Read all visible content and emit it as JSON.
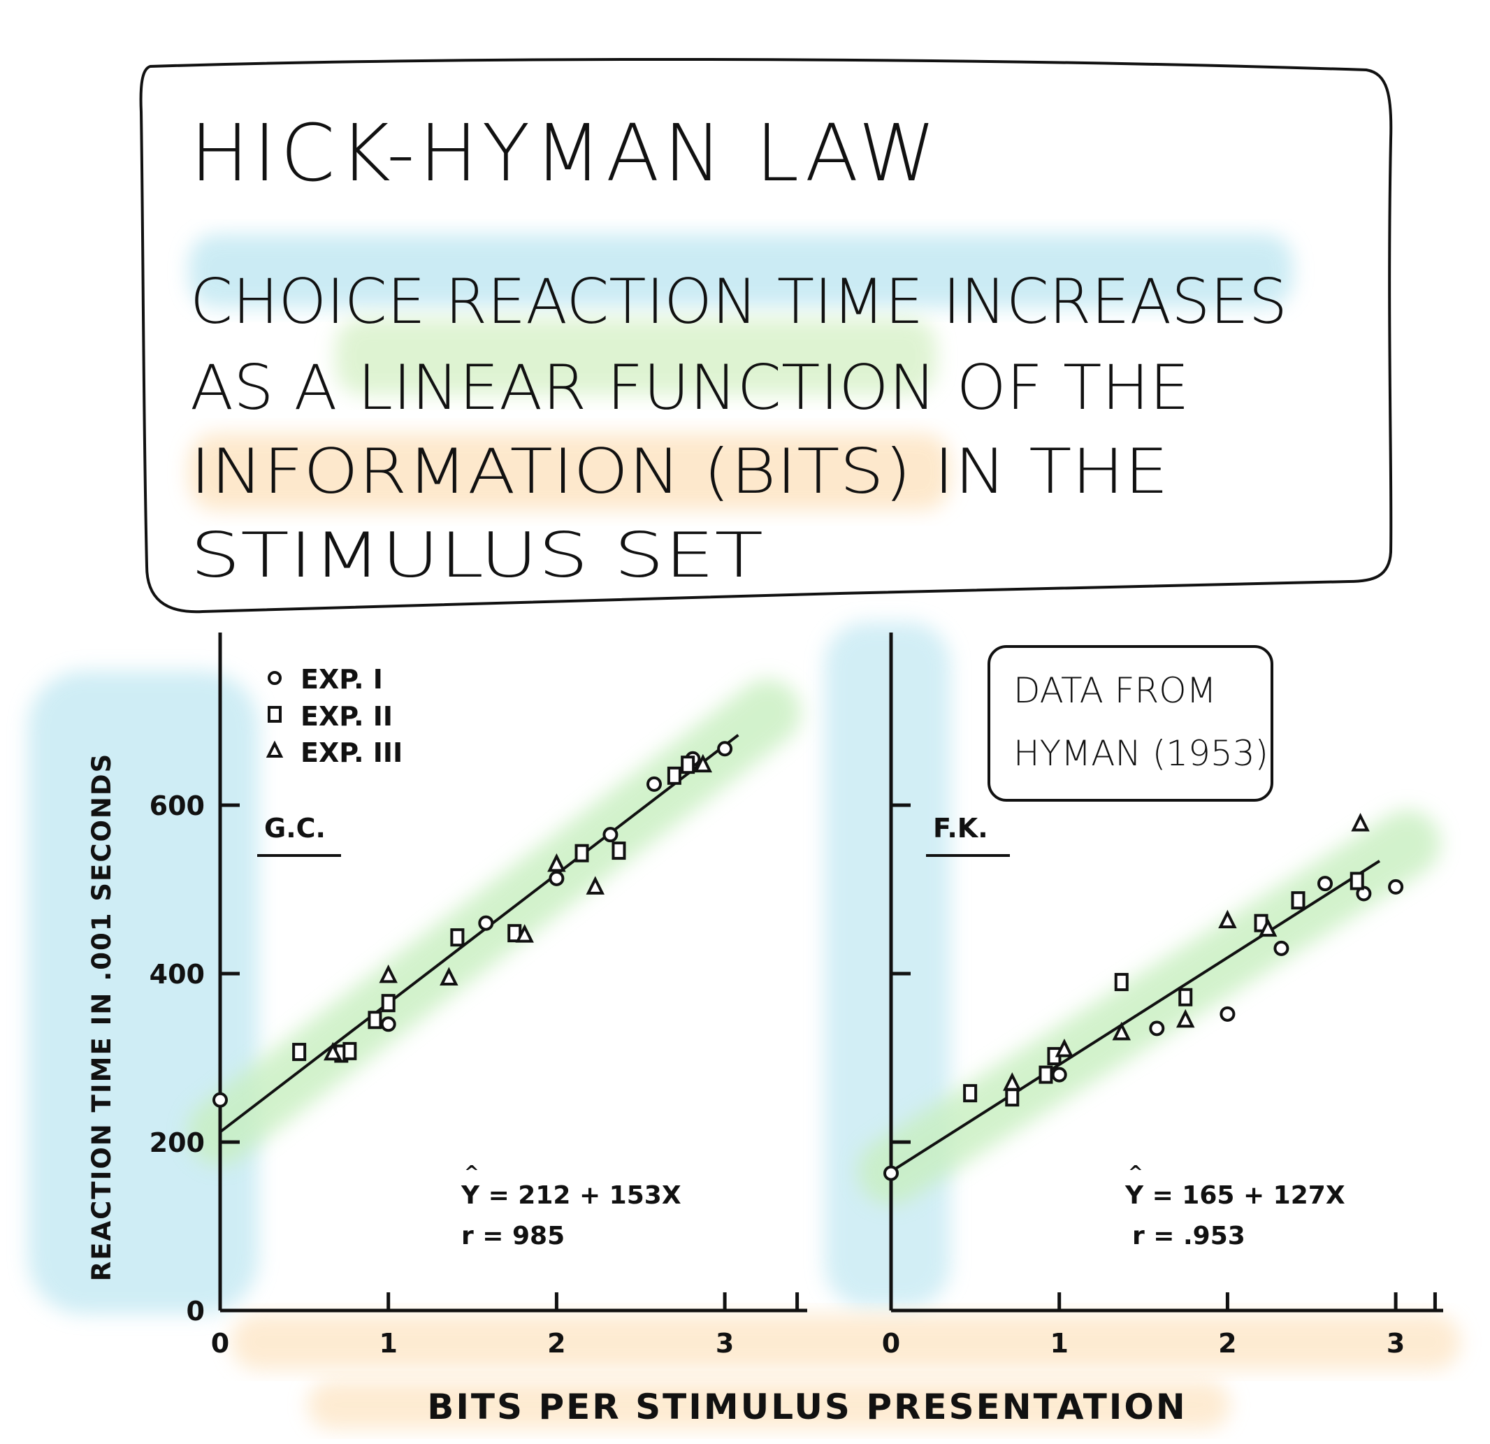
{
  "header": {
    "title": "HICK-HYMAN LAW",
    "definition_lines": [
      "CHOICE REACTION TIME INCREASES",
      "AS A LINEAR FUNCTION OF THE",
      "INFORMATION (BITS)  IN THE",
      "STIMULUS  SET"
    ]
  },
  "note": {
    "line1": "DATA FROM",
    "line2": "HYMAN (1953)"
  },
  "shared": {
    "ylabel": "REACTION  TIME  IN  .001  SECONDS",
    "xlabel": "BITS   PER   STIMULUS   PRESENTATION"
  },
  "legend": [
    {
      "symbol": "circle",
      "label": "EXP.  I"
    },
    {
      "symbol": "square",
      "label": "EXP.  II"
    },
    {
      "symbol": "triangle",
      "label": "EXP.  III"
    }
  ],
  "chart_data": [
    {
      "type": "scatter",
      "subject": "G.C.",
      "xlabel": "BITS PER STIMULUS PRESENTATION",
      "ylabel": "REACTION TIME IN .001 SECONDS",
      "xlim": [
        0,
        3.5
      ],
      "ylim": [
        0,
        750
      ],
      "x_ticks": [
        0,
        1,
        2,
        3
      ],
      "y_ticks": [
        0,
        200,
        400,
        600
      ],
      "y_tick_labels_shown": true,
      "fit": {
        "intercept": 212,
        "slope": 153,
        "equation": "Y = 212 + 153X",
        "r_text": "r =  985"
      },
      "series": [
        {
          "name": "EXP.  I",
          "symbol": "circle",
          "points": [
            [
              0,
              250
            ],
            [
              1,
              340
            ],
            [
              1.58,
              460
            ],
            [
              2.0,
              513
            ],
            [
              2.32,
              565
            ],
            [
              2.58,
              625
            ],
            [
              2.81,
              655
            ],
            [
              3.0,
              667
            ]
          ]
        },
        {
          "name": "EXP.  II",
          "symbol": "square",
          "points": [
            [
              0.47,
              307
            ],
            [
              0.72,
              305
            ],
            [
              0.77,
              308
            ],
            [
              0.92,
              345
            ],
            [
              1.0,
              365
            ],
            [
              1.41,
              443
            ],
            [
              1.75,
              448
            ],
            [
              2.15,
              543
            ],
            [
              2.37,
              546
            ],
            [
              2.7,
              635
            ],
            [
              2.78,
              648
            ]
          ]
        },
        {
          "name": "EXP.  III",
          "symbol": "triangle",
          "points": [
            [
              0.67,
              306
            ],
            [
              1.0,
              398
            ],
            [
              1.36,
              395
            ],
            [
              1.81,
              446
            ],
            [
              2.0,
              530
            ],
            [
              2.23,
              503
            ],
            [
              2.87,
              648
            ]
          ]
        }
      ]
    },
    {
      "type": "scatter",
      "subject": "F.K.",
      "xlabel": "BITS PER STIMULUS PRESENTATION",
      "ylabel": "REACTION TIME IN .001 SECONDS",
      "xlim": [
        0,
        3.3
      ],
      "ylim": [
        0,
        750
      ],
      "x_ticks": [
        0,
        1,
        2,
        3
      ],
      "y_ticks": [
        200,
        400,
        600
      ],
      "y_tick_labels_shown": false,
      "fit": {
        "intercept": 165,
        "slope": 127,
        "equation": "Y = 165 + 127X",
        "r_text": "r = .953"
      },
      "series": [
        {
          "name": "EXP.  I",
          "symbol": "circle",
          "points": [
            [
              0,
              163
            ],
            [
              1.0,
              280
            ],
            [
              1.58,
              335
            ],
            [
              2.0,
              352
            ],
            [
              2.32,
              430
            ],
            [
              2.58,
              507
            ],
            [
              2.81,
              495
            ],
            [
              3.0,
              503
            ]
          ]
        },
        {
          "name": "EXP.  II",
          "symbol": "square",
          "points": [
            [
              0.47,
              258
            ],
            [
              0.72,
              253
            ],
            [
              0.92,
              280
            ],
            [
              0.97,
              302
            ],
            [
              1.37,
              390
            ],
            [
              1.75,
              372
            ],
            [
              2.2,
              460
            ],
            [
              2.42,
              487
            ],
            [
              2.77,
              510
            ]
          ]
        },
        {
          "name": "EXP.  III",
          "symbol": "triangle",
          "points": [
            [
              0.72,
              270
            ],
            [
              1.03,
              310
            ],
            [
              1.37,
              330
            ],
            [
              1.75,
              345
            ],
            [
              2.0,
              463
            ],
            [
              2.24,
              453
            ],
            [
              2.79,
              578
            ]
          ]
        }
      ]
    }
  ],
  "colors": {
    "ink": "#111111",
    "blue_wash": "#bfe7f2",
    "green_wash": "#c8efc0",
    "orange_wash": "#fde3c0"
  }
}
